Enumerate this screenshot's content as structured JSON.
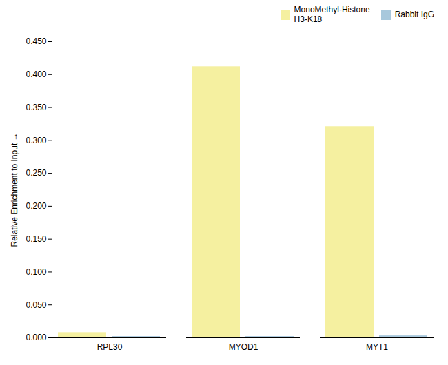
{
  "chart_data": {
    "type": "bar",
    "categories": [
      "RPL30",
      "MYOD1",
      "MYT1"
    ],
    "series": [
      {
        "name": "MonoMethyl-Histone\nH3-K18",
        "color": "#F5F0A0",
        "values": [
          0.008,
          0.412,
          0.321
        ]
      },
      {
        "name": "Rabbit IgG",
        "color": "#A8C8DC",
        "values": [
          0.002,
          0.002,
          0.003
        ]
      }
    ],
    "ylabel": "Relative Enrichment to Input",
    "ylim": [
      0,
      0.45
    ],
    "yticks": [
      {
        "value": 0.0,
        "label": "0.000"
      },
      {
        "value": 0.05,
        "label": "0.050"
      },
      {
        "value": 0.1,
        "label": "0.100"
      },
      {
        "value": 0.15,
        "label": "0.150"
      },
      {
        "value": 0.2,
        "label": "0.200"
      },
      {
        "value": 0.25,
        "label": "0.250"
      },
      {
        "value": 0.3,
        "label": "0.300"
      },
      {
        "value": 0.35,
        "label": "0.350"
      },
      {
        "value": 0.4,
        "label": "0.400"
      },
      {
        "value": 0.45,
        "label": "0.450"
      }
    ],
    "grid": false,
    "legend": "upper right"
  }
}
